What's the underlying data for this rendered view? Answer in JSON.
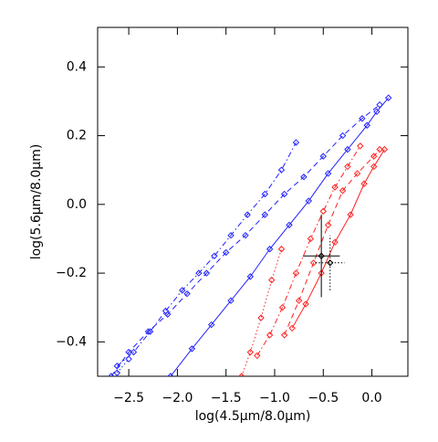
{
  "chart_data": {
    "type": "line",
    "xlabel": "log(4.5μm/8.0μm)",
    "ylabel": "log(5.6μm/8.0μm)",
    "xlim": [
      -2.82,
      0.37
    ],
    "ylim": [
      -0.5,
      0.515
    ],
    "xticks": [
      {
        "value": -2.5,
        "label": "−2.5"
      },
      {
        "value": -2.0,
        "label": "−2.0"
      },
      {
        "value": -1.5,
        "label": "−1.5"
      },
      {
        "value": -1.0,
        "label": "−1.0"
      },
      {
        "value": -0.5,
        "label": "−0.5"
      },
      {
        "value": 0.0,
        "label": "0.0"
      }
    ],
    "yticks": [
      {
        "value": -0.4,
        "label": "−0.4"
      },
      {
        "value": -0.2,
        "label": "−0.2"
      },
      {
        "value": 0.0,
        "label": "0.0"
      },
      {
        "value": 0.2,
        "label": "0.2"
      },
      {
        "value": 0.4,
        "label": "0.4"
      }
    ],
    "series": [
      {
        "color": "#2020ff",
        "dash": "6 3 1.5 3",
        "x": [
          -2.62,
          -2.45,
          -2.28,
          -2.12,
          -1.95,
          -1.78,
          -1.62,
          -1.45,
          -1.28,
          -1.1,
          -0.93,
          -0.78
        ],
        "values": [
          -0.47,
          -0.43,
          -0.37,
          -0.31,
          -0.25,
          -0.2,
          -0.15,
          -0.09,
          -0.03,
          0.03,
          0.1,
          0.18
        ]
      },
      {
        "color": "#2020ff",
        "dash": "6 4",
        "x": [
          -2.68,
          -2.5,
          -2.3,
          -2.1,
          -1.9,
          -1.7,
          -1.5,
          -1.3,
          -1.1,
          -0.9,
          -0.7,
          -0.5,
          -0.3,
          -0.1,
          0.08
        ],
        "values": [
          -0.5,
          -0.43,
          -0.37,
          -0.32,
          -0.26,
          -0.2,
          -0.14,
          -0.09,
          -0.03,
          0.03,
          0.08,
          0.14,
          0.2,
          0.25,
          0.29
        ]
      },
      {
        "color": "#2020ff",
        "dash": "none",
        "x": [
          -2.07,
          -1.85,
          -1.65,
          -1.45,
          -1.25,
          -1.05,
          -0.85,
          -0.65,
          -0.45,
          -0.25,
          -0.05,
          0.05,
          0.17
        ],
        "values": [
          -0.5,
          -0.42,
          -0.35,
          -0.28,
          -0.21,
          -0.13,
          -0.06,
          0.01,
          0.09,
          0.16,
          0.23,
          0.27,
          0.31
        ]
      },
      {
        "color": "#2020ff",
        "dash": "1.5 2.5",
        "x": [
          -2.62,
          -2.5
        ],
        "values": [
          -0.49,
          -0.45
        ]
      },
      {
        "color": "#ff2020",
        "dash": "1.5 2.5",
        "x": [
          -1.34,
          -1.25,
          -1.14,
          -1.03,
          -0.93
        ],
        "values": [
          -0.5,
          -0.43,
          -0.33,
          -0.22,
          -0.13
        ]
      },
      {
        "color": "#ff2020",
        "dash": "6 3 1.5 3",
        "x": [
          -1.18,
          -1.05,
          -0.92,
          -0.78,
          -0.63,
          -0.5,
          -0.38,
          -0.25,
          -0.12
        ],
        "values": [
          -0.44,
          -0.38,
          -0.3,
          -0.2,
          -0.1,
          -0.02,
          0.05,
          0.11,
          0.17
        ]
      },
      {
        "color": "#ff2020",
        "dash": "6 4",
        "x": [
          -0.9,
          -0.75,
          -0.6,
          -0.45,
          -0.3,
          -0.15,
          0.02,
          0.08
        ],
        "values": [
          -0.38,
          -0.28,
          -0.17,
          -0.06,
          0.04,
          0.09,
          0.14,
          0.16
        ]
      },
      {
        "color": "#ff2020",
        "dash": "none",
        "x": [
          -0.82,
          -0.68,
          -0.52,
          -0.38,
          -0.22,
          -0.08,
          0.02,
          0.13
        ],
        "values": [
          -0.36,
          -0.29,
          -0.2,
          -0.11,
          -0.03,
          0.06,
          0.11,
          0.16
        ]
      }
    ],
    "points": [
      {
        "x": -0.52,
        "y": -0.15,
        "xerr": 0.19,
        "yerr": 0.12,
        "color": "#000000",
        "dash": "none"
      },
      {
        "x": -0.43,
        "y": -0.17,
        "xerr": 0.15,
        "yerr": 0.08,
        "color": "#000000",
        "dash": "1.5 2"
      }
    ]
  }
}
